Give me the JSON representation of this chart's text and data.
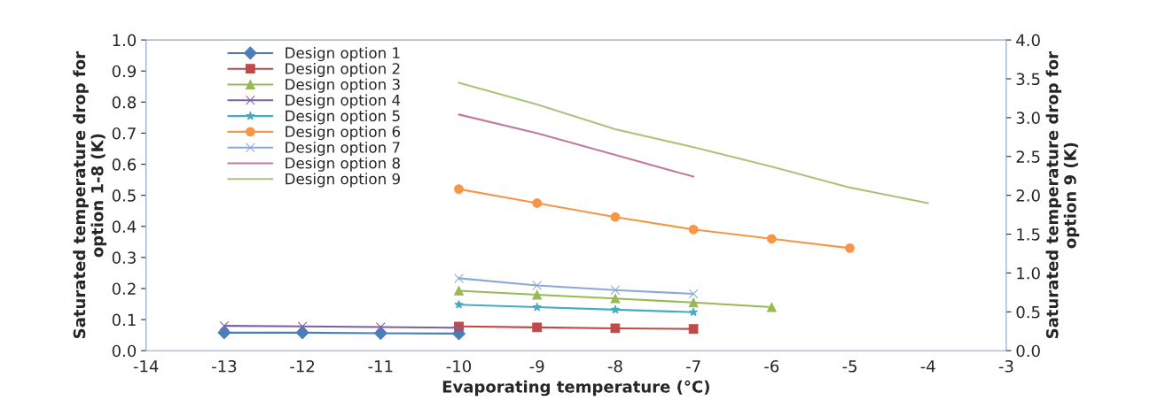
{
  "chart_data": {
    "type": "line",
    "xlabel": "Evaporating temperature (°C)",
    "ylabel": "Saturated temperature drop for\noption 1-8 (K)",
    "y2label": "Saturated temperature drop for\noption 9 (K)",
    "xlim": [
      -14,
      -3
    ],
    "xticks": [
      -14,
      -13,
      -12,
      -11,
      -10,
      -9,
      -8,
      -7,
      -6,
      -5,
      -4,
      -3
    ],
    "ylim": [
      0,
      1
    ],
    "yticks": [
      {
        "value": 0,
        "label": "0.0"
      },
      {
        "value": 0.1,
        "label": "0.1"
      },
      {
        "value": 0.2,
        "label": "0.2"
      },
      {
        "value": 0.3,
        "label": "0.3"
      },
      {
        "value": 0.4,
        "label": "0.4"
      },
      {
        "value": 0.5,
        "label": "0.5"
      },
      {
        "value": 0.6,
        "label": "0.6"
      },
      {
        "value": 0.7,
        "label": "0.7"
      },
      {
        "value": 0.8,
        "label": "0.8"
      },
      {
        "value": 0.9,
        "label": "0.9"
      },
      {
        "value": 1,
        "label": "1.0"
      }
    ],
    "y2lim": [
      0,
      4
    ],
    "y2ticks": [
      {
        "value": 0,
        "label": "0.0"
      },
      {
        "value": 0.5,
        "label": "0.5"
      },
      {
        "value": 1,
        "label": "1.0"
      },
      {
        "value": 1.5,
        "label": "1.5"
      },
      {
        "value": 2,
        "label": "2.0"
      },
      {
        "value": 2.5,
        "label": "2.5"
      },
      {
        "value": 3,
        "label": "3.0"
      },
      {
        "value": 3.5,
        "label": "3.5"
      },
      {
        "value": 4,
        "label": "4.0"
      }
    ],
    "grid": false,
    "legend": "top left",
    "series": [
      {
        "name": "Design option 1",
        "color": "#4a7ebb",
        "marker": "diamond",
        "x": [
          -13,
          -12,
          -11,
          -10
        ],
        "values": [
          0.058,
          0.058,
          0.056,
          0.055
        ]
      },
      {
        "name": "Design option 2",
        "color": "#be4b48",
        "marker": "square",
        "x": [
          -10,
          -9,
          -8,
          -7
        ],
        "values": [
          0.078,
          0.075,
          0.072,
          0.07
        ]
      },
      {
        "name": "Design option 3",
        "color": "#98b954",
        "marker": "triangle",
        "x": [
          -10,
          -9,
          -8,
          -7,
          -6
        ],
        "values": [
          0.193,
          0.18,
          0.168,
          0.155,
          0.14
        ]
      },
      {
        "name": "Design option 4",
        "color": "#7d60a0",
        "marker": "cross",
        "x": [
          -13,
          -12,
          -11,
          -10
        ],
        "values": [
          0.08,
          0.078,
          0.076,
          0.074
        ]
      },
      {
        "name": "Design option 5",
        "color": "#46aac5",
        "marker": "star",
        "x": [
          -10,
          -9,
          -8,
          -7
        ],
        "values": [
          0.148,
          0.14,
          0.132,
          0.124
        ]
      },
      {
        "name": "Design option 6",
        "color": "#f79646",
        "marker": "circle",
        "x": [
          -10,
          -9,
          -8,
          -7,
          -6,
          -5
        ],
        "values": [
          0.52,
          0.475,
          0.43,
          0.39,
          0.36,
          0.33
        ]
      },
      {
        "name": "Design option 7",
        "color": "#8ba9d6",
        "marker": "cross",
        "x": [
          -10,
          -9,
          -8,
          -7
        ],
        "values": [
          0.233,
          0.21,
          0.195,
          0.183
        ]
      },
      {
        "name": "Design option 8",
        "color": "#c27ba0",
        "marker": "none",
        "x": [
          -10,
          -9,
          -8,
          -7
        ],
        "values": [
          0.76,
          0.7,
          0.63,
          0.56
        ]
      },
      {
        "name": "Design option 9",
        "color": "#a9c47f",
        "marker": "none",
        "axis": "y2",
        "x": [
          -10,
          -9,
          -8,
          -7,
          -6,
          -5,
          -4
        ],
        "values": [
          3.45,
          3.17,
          2.85,
          2.62,
          2.37,
          2.1,
          1.9
        ]
      }
    ]
  }
}
